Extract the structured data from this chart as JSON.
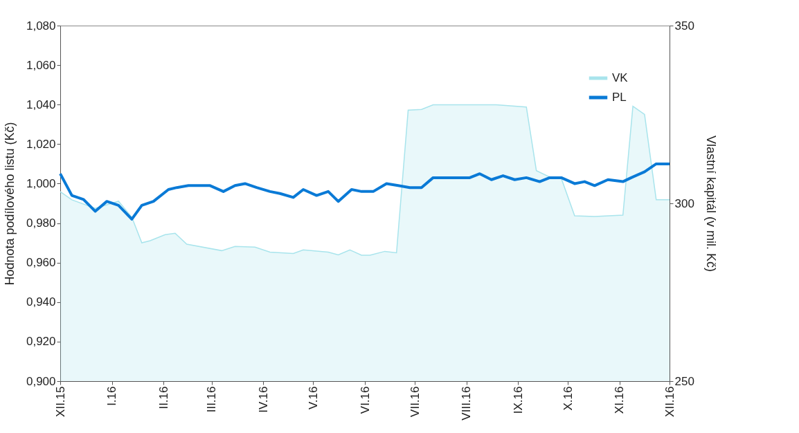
{
  "chart_data": {
    "type": "line",
    "ylabel": "Hodnota podílového listu  (Kč)",
    "y2label": "Vlastní kapitál (v mil. Kč)",
    "xlim": [
      "2015-12-01",
      "2016-12-01"
    ],
    "xticks": [
      {
        "value": "2015-12-01",
        "label": "XII.15"
      },
      {
        "value": "2016-01-01",
        "label": "I.16"
      },
      {
        "value": "2016-02-01",
        "label": "II.16"
      },
      {
        "value": "2016-03-01",
        "label": "III.16"
      },
      {
        "value": "2016-04-01",
        "label": "IV.16"
      },
      {
        "value": "2016-05-01",
        "label": "V.16"
      },
      {
        "value": "2016-06-01",
        "label": "VI.16"
      },
      {
        "value": "2016-07-01",
        "label": "VII.16"
      },
      {
        "value": "2016-08-01",
        "label": "VIII.16"
      },
      {
        "value": "2016-09-01",
        "label": "IX.16"
      },
      {
        "value": "2016-10-01",
        "label": "X.16"
      },
      {
        "value": "2016-11-01",
        "label": "XI.16"
      },
      {
        "value": "2016-12-01",
        "label": "XII.16"
      }
    ],
    "ylim": [
      0.9,
      1.08
    ],
    "yticks": [
      {
        "value": 0.9,
        "label": "0,900"
      },
      {
        "value": 0.92,
        "label": "0,920"
      },
      {
        "value": 0.94,
        "label": "0,940"
      },
      {
        "value": 0.96,
        "label": "0,960"
      },
      {
        "value": 0.98,
        "label": "0,980"
      },
      {
        "value": 1.0,
        "label": "1,000"
      },
      {
        "value": 1.02,
        "label": "1,020"
      },
      {
        "value": 1.04,
        "label": "1,040"
      },
      {
        "value": 1.06,
        "label": "1,060"
      },
      {
        "value": 1.08,
        "label": "1,080"
      }
    ],
    "y2lim": [
      250,
      350
    ],
    "y2ticks": [
      250,
      300,
      350
    ],
    "grid": false,
    "legend": "top right",
    "series": [
      {
        "name": "VK",
        "type": "area",
        "axis": "y2",
        "color": "#a8e4ec",
        "x": [
          "2015-12-01",
          "2015-12-08",
          "2015-12-22",
          "2016-01-05",
          "2016-01-13",
          "2016-01-19",
          "2016-01-24",
          "2016-02-02",
          "2016-02-08",
          "2016-02-15",
          "2016-03-07",
          "2016-03-15",
          "2016-03-27",
          "2016-04-05",
          "2016-04-19",
          "2016-04-25",
          "2016-05-10",
          "2016-05-16",
          "2016-05-23",
          "2016-05-30",
          "2016-06-04",
          "2016-06-13",
          "2016-06-20",
          "2016-06-27",
          "2016-07-05",
          "2016-07-12",
          "2016-08-19",
          "2016-09-06",
          "2016-09-12",
          "2016-09-20",
          "2016-09-27",
          "2016-10-05",
          "2016-10-17",
          "2016-11-03",
          "2016-11-09",
          "2016-11-16",
          "2016-11-23",
          "2016-12-01"
        ],
        "values": [
          303.3,
          301,
          298.6,
          300.6,
          296.1,
          288.9,
          289.5,
          291.2,
          291.6,
          288.5,
          286.7,
          287.9,
          287.7,
          286.3,
          285.9,
          286.9,
          286.3,
          285.5,
          286.9,
          285.4,
          285.4,
          286.5,
          286.1,
          326.2,
          326.4,
          327.7,
          327.7,
          327.1,
          309.2,
          307.4,
          307,
          296.5,
          296.3,
          296.7,
          327.3,
          325,
          301,
          301
        ]
      },
      {
        "name": "PL",
        "type": "line",
        "color": "#0a7ad6",
        "x": [
          "2015-12-01",
          "2015-12-08",
          "2015-12-15",
          "2015-12-22",
          "2015-12-29",
          "2016-01-05",
          "2016-01-13",
          "2016-01-19",
          "2016-01-26",
          "2016-02-04",
          "2016-02-09",
          "2016-02-16",
          "2016-02-29",
          "2016-03-08",
          "2016-03-15",
          "2016-03-21",
          "2016-03-28",
          "2016-04-05",
          "2016-04-11",
          "2016-04-19",
          "2016-04-25",
          "2016-05-03",
          "2016-05-10",
          "2016-05-16",
          "2016-05-24",
          "2016-05-30",
          "2016-06-06",
          "2016-06-14",
          "2016-06-21",
          "2016-06-28",
          "2016-07-05",
          "2016-07-12",
          "2016-08-03",
          "2016-08-09",
          "2016-08-16",
          "2016-08-23",
          "2016-08-30",
          "2016-09-06",
          "2016-09-14",
          "2016-09-20",
          "2016-09-27",
          "2016-10-05",
          "2016-10-11",
          "2016-10-17",
          "2016-10-25",
          "2016-11-03",
          "2016-11-08",
          "2016-11-16",
          "2016-11-23",
          "2016-12-01"
        ],
        "values": [
          1.005,
          0.994,
          0.992,
          0.986,
          0.991,
          0.989,
          0.982,
          0.989,
          0.991,
          0.997,
          0.998,
          0.999,
          0.999,
          0.996,
          0.999,
          1.0,
          0.998,
          0.996,
          0.995,
          0.993,
          0.997,
          0.994,
          0.996,
          0.991,
          0.997,
          0.996,
          0.996,
          1.0,
          0.999,
          0.998,
          0.998,
          1.003,
          1.003,
          1.005,
          1.002,
          1.004,
          1.002,
          1.003,
          1.001,
          1.003,
          1.003,
          1.0,
          1.001,
          0.999,
          1.002,
          1.001,
          1.003,
          1.006,
          1.01,
          1.01
        ]
      }
    ]
  }
}
